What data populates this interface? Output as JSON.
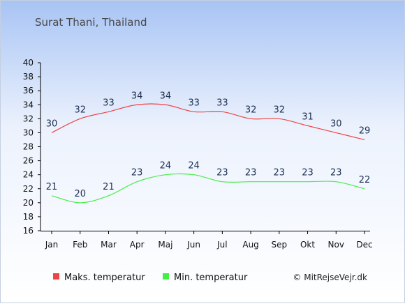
{
  "chart_data": {
    "type": "line",
    "title": "Surat Thani, Thailand",
    "categories": [
      "Jan",
      "Feb",
      "Mar",
      "Apr",
      "Maj",
      "Jun",
      "Jul",
      "Aug",
      "Sep",
      "Okt",
      "Nov",
      "Dec"
    ],
    "ylim": [
      16,
      40
    ],
    "yticks": [
      16,
      18,
      20,
      22,
      24,
      26,
      28,
      30,
      32,
      34,
      36,
      38,
      40
    ],
    "series": [
      {
        "name": "Maks. temperatur",
        "color": "#ee4444",
        "values": [
          30,
          32,
          33,
          34,
          34,
          33,
          33,
          32,
          32,
          31,
          30,
          29
        ]
      },
      {
        "name": "Min. temperatur",
        "color": "#44ee44",
        "values": [
          21,
          20,
          21,
          23,
          24,
          24,
          23,
          23,
          23,
          23,
          23,
          22
        ]
      }
    ],
    "legend_position": "bottom",
    "grid": false,
    "copyright": "© MitRejseVejr.dk"
  },
  "colors": {
    "background_top": "#a8c4f4",
    "background_bottom": "#ffffff",
    "label_text": "#1c2f50"
  }
}
